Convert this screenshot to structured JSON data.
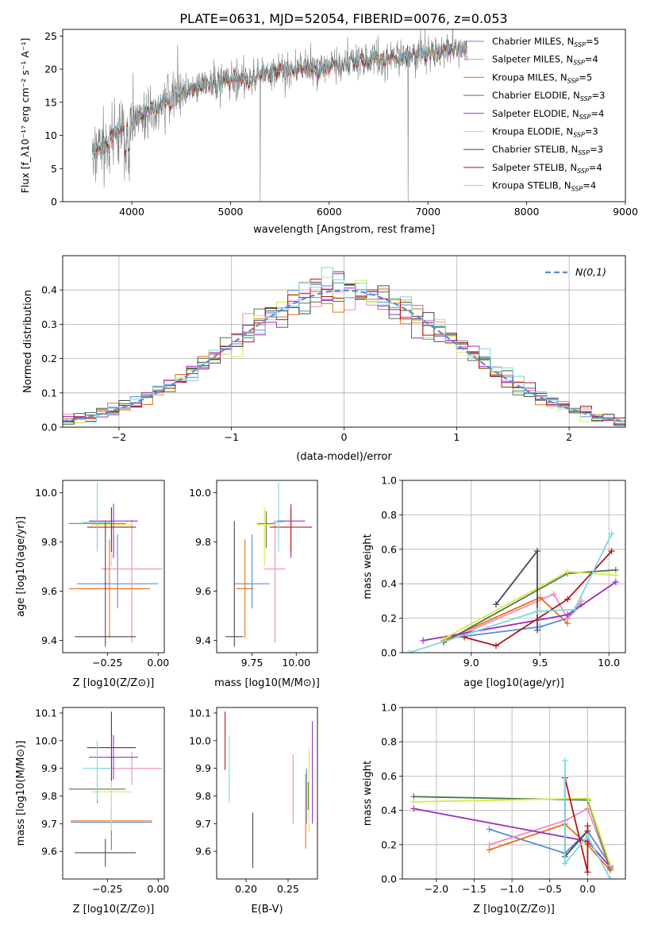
{
  "figure_title": "PLATE=0631, MJD=52054, FIBERID=0076, z=0.053",
  "colors": {
    "Chabrier MILES": "#5b8bd6",
    "Salpeter MILES": "#f08cb8",
    "Kroupa MILES": "#e8701a",
    "Chabrier ELODIE": "#4a7a4a",
    "Salpeter ELODIE": "#9b2ec0",
    "Kroupa ELODIE": "#d8e84a",
    "Chabrier STELIB": "#4a4a4a",
    "Salpeter STELIB": "#b01818",
    "Kroupa STELIB": "#7dd6e0",
    "data": "#808080",
    "gaussian": "#5b8bd6",
    "grid": "#b0b0b0"
  },
  "chart_data": [
    {
      "type": "line",
      "panel": "spectrum",
      "xlabel": "wavelength [Angstrom, rest frame]",
      "ylabel": "Flux [f_λ10⁻¹⁷ erg cm⁻² s⁻¹ A⁻¹]",
      "xlim": [
        3300,
        9000
      ],
      "ylim": [
        0,
        26
      ],
      "xticks": [
        4000,
        5000,
        6000,
        7000,
        8000,
        9000
      ],
      "yticks": [
        0,
        5,
        10,
        15,
        20,
        25
      ],
      "grid": false,
      "legend_position": "upper-right",
      "data_range": [
        3600,
        7400
      ],
      "continuum": {
        "x": [
          3600,
          3800,
          4000,
          4200,
          4500,
          5000,
          5500,
          6000,
          6500,
          7000,
          7400
        ],
        "y": [
          7,
          10,
          12,
          14,
          16.5,
          18.5,
          19.5,
          20.5,
          21.5,
          22.5,
          23
        ]
      },
      "series": [
        {
          "name": "Chabrier MILES, N_SSP=5",
          "label_main": "Chabrier MILES, N",
          "label_sub": "SSP",
          "label_tail": "=5"
        },
        {
          "name": "Salpeter MILES, N_SSP=4",
          "label_main": "Salpeter MILES, N",
          "label_sub": "SSP",
          "label_tail": "=4"
        },
        {
          "name": "Kroupa MILES, N_SSP=5",
          "label_main": "Kroupa MILES, N",
          "label_sub": "SSP",
          "label_tail": "=5"
        },
        {
          "name": "Chabrier ELODIE, N_SSP=3",
          "label_main": "Chabrier ELODIE, N",
          "label_sub": "SSP",
          "label_tail": "=3"
        },
        {
          "name": "Salpeter ELODIE, N_SSP=4",
          "label_main": "Salpeter ELODIE, N",
          "label_sub": "SSP",
          "label_tail": "=4"
        },
        {
          "name": "Kroupa ELODIE, N_SSP=3",
          "label_main": "Kroupa ELODIE, N",
          "label_sub": "SSP",
          "label_tail": "=3"
        },
        {
          "name": "Chabrier STELIB, N_SSP=3",
          "label_main": "Chabrier STELIB, N",
          "label_sub": "SSP",
          "label_tail": "=3"
        },
        {
          "name": "Salpeter STELIB, N_SSP=4",
          "label_main": "Salpeter STELIB, N",
          "label_sub": "SSP",
          "label_tail": "=4"
        },
        {
          "name": "Kroupa STELIB, N_SSP=4",
          "label_main": "Kroupa STELIB, N",
          "label_sub": "SSP",
          "label_tail": "=4"
        }
      ]
    },
    {
      "type": "histogram",
      "panel": "residuals",
      "xlabel": "(data-model)/error",
      "ylabel": "Normed distribution",
      "xlim": [
        -2.5,
        2.5
      ],
      "ylim": [
        0,
        0.5
      ],
      "xticks": [
        -2,
        -1,
        0,
        1,
        2
      ],
      "yticks": [
        0.0,
        0.1,
        0.2,
        0.3,
        0.4
      ],
      "grid": true,
      "bin_width": 0.1,
      "reference_curve": {
        "name": "N(0,1)",
        "mean": 0,
        "sigma": 1
      },
      "legend_position": "upper-right"
    },
    {
      "type": "scatter",
      "panel": "Z-age",
      "xlabel": "Z [log10(Z/Z⊙)]",
      "ylabel": "age  [log10(age/yr)]",
      "xlim": [
        -0.47,
        0.03
      ],
      "ylim": [
        9.35,
        10.05
      ],
      "xticks": [
        -0.25,
        0.0
      ],
      "yticks": [
        9.4,
        9.6,
        9.8,
        10.0
      ],
      "grid": false,
      "points": [
        {
          "series": "Chabrier MILES",
          "x": -0.2,
          "y": 9.63,
          "xerr": 0.2,
          "yerr": [
            0.1,
            0.2
          ]
        },
        {
          "series": "Salpeter MILES",
          "x": -0.13,
          "y": 9.69,
          "xerr": 0.15,
          "yerr": [
            0.3,
            0.2
          ]
        },
        {
          "series": "Kroupa MILES",
          "x": -0.24,
          "y": 9.61,
          "xerr": 0.2,
          "yerr": [
            0.2,
            0.2
          ]
        },
        {
          "series": "Chabrier ELODIE",
          "x": -0.3,
          "y": 9.875,
          "xerr": 0.14,
          "yerr": [
            0.1,
            0.05
          ]
        },
        {
          "series": "Salpeter ELODIE",
          "x": -0.22,
          "y": 9.885,
          "xerr": 0.12,
          "yerr": [
            0.15,
            0.07
          ]
        },
        {
          "series": "Kroupa ELODIE",
          "x": -0.23,
          "y": 9.87,
          "xerr": 0.1,
          "yerr": [
            0.17,
            0.07
          ]
        },
        {
          "series": "Chabrier STELIB",
          "x": -0.26,
          "y": 9.415,
          "xerr": 0.15,
          "yerr": [
            0.04,
            0.47
          ]
        },
        {
          "series": "Salpeter STELIB",
          "x": -0.23,
          "y": 9.86,
          "xerr": 0.12,
          "yerr": [
            0.1,
            0.08
          ]
        },
        {
          "series": "Kroupa STELIB",
          "x": -0.3,
          "y": 9.88,
          "xerr": 0.07,
          "yerr": [
            0.12,
            0.16
          ]
        }
      ]
    },
    {
      "type": "scatter",
      "panel": "mass-age",
      "xlabel": "mass [log10(M/M⊙)]",
      "ylabel": "",
      "xlim": [
        9.55,
        10.12
      ],
      "ylim": [
        9.35,
        10.05
      ],
      "xticks": [
        9.75,
        10.0
      ],
      "yticks": [
        9.4,
        9.6,
        9.8,
        10.0
      ],
      "grid": false,
      "points": [
        {
          "series": "Chabrier MILES",
          "x": 9.75,
          "y": 9.63,
          "xerr": 0.1,
          "yerr": [
            0.1,
            0.2
          ]
        },
        {
          "series": "Salpeter MILES",
          "x": 9.88,
          "y": 9.69,
          "xerr": 0.06,
          "yerr": [
            0.3,
            0.2
          ]
        },
        {
          "series": "Kroupa MILES",
          "x": 9.71,
          "y": 9.61,
          "xerr": 0.05,
          "yerr": [
            0.2,
            0.2
          ]
        },
        {
          "series": "Chabrier ELODIE",
          "x": 9.83,
          "y": 9.875,
          "xerr": 0.05,
          "yerr": [
            0.1,
            0.05
          ]
        },
        {
          "series": "Salpeter ELODIE",
          "x": 9.97,
          "y": 9.885,
          "xerr": 0.08,
          "yerr": [
            0.15,
            0.07
          ]
        },
        {
          "series": "Kroupa ELODIE",
          "x": 9.82,
          "y": 9.87,
          "xerr": 0.05,
          "yerr": [
            0.17,
            0.07
          ]
        },
        {
          "series": "Chabrier STELIB",
          "x": 9.65,
          "y": 9.415,
          "xerr": 0.05,
          "yerr": [
            0.04,
            0.47
          ]
        },
        {
          "series": "Salpeter STELIB",
          "x": 9.97,
          "y": 9.86,
          "xerr": 0.12,
          "yerr": [
            0.1,
            0.08
          ]
        },
        {
          "series": "Kroupa STELIB",
          "x": 9.9,
          "y": 9.88,
          "xerr": 0.03,
          "yerr": [
            0.12,
            0.16
          ]
        }
      ]
    },
    {
      "type": "line",
      "panel": "age-massweight",
      "xlabel": "age  [log10(age/yr)]",
      "ylabel": "mass weight",
      "xlim": [
        8.5,
        10.12
      ],
      "ylim": [
        0,
        1
      ],
      "xticks": [
        9.0,
        9.5,
        10.0
      ],
      "yticks": [
        0.0,
        0.2,
        0.4,
        0.6,
        0.8,
        1.0
      ],
      "grid": true,
      "series": [
        {
          "series": "Chabrier MILES",
          "x": [
            8.8,
            9.5,
            9.7,
            9.8
          ],
          "y": [
            0.08,
            0.15,
            0.2,
            0.28
          ]
        },
        {
          "series": "Salpeter MILES",
          "x": [
            8.8,
            9.6,
            9.7,
            9.8
          ],
          "y": [
            0.06,
            0.34,
            0.2,
            0.3
          ]
        },
        {
          "series": "Kroupa MILES",
          "x": [
            8.8,
            9.5,
            9.7
          ],
          "y": [
            0.07,
            0.32,
            0.17
          ]
        },
        {
          "series": "Chabrier ELODIE",
          "x": [
            8.8,
            9.7,
            10.05
          ],
          "y": [
            0.06,
            0.46,
            0.48
          ]
        },
        {
          "series": "Salpeter ELODIE",
          "x": [
            8.65,
            9.7,
            10.05
          ],
          "y": [
            0.07,
            0.22,
            0.41
          ]
        },
        {
          "series": "Kroupa ELODIE",
          "x": [
            8.8,
            9.7,
            10.05
          ],
          "y": [
            0.08,
            0.47,
            0.45
          ]
        },
        {
          "series": "Chabrier STELIB",
          "x": [
            9.18,
            9.48,
            9.48
          ],
          "y": [
            0.28,
            0.59,
            0.13
          ]
        },
        {
          "series": "Salpeter STELIB",
          "x": [
            8.95,
            9.18,
            9.7,
            10.02
          ],
          "y": [
            0.09,
            0.04,
            0.31,
            0.59
          ]
        },
        {
          "series": "Kroupa STELIB",
          "x": [
            8.55,
            9.48,
            9.75,
            10.02
          ],
          "y": [
            0.0,
            0.24,
            0.25,
            0.69
          ]
        }
      ]
    },
    {
      "type": "scatter",
      "panel": "Z-mass",
      "xlabel": "Z [log10(Z/Z⊙)]",
      "ylabel": "mass [log10(M/M⊙)]",
      "xlim": [
        -0.47,
        0.03
      ],
      "ylim": [
        9.5,
        10.12
      ],
      "xticks": [
        -0.25,
        0.0
      ],
      "yticks": [
        9.6,
        9.7,
        9.8,
        9.9,
        10.0,
        10.1
      ],
      "grid": false,
      "points": [
        {
          "series": "Chabrier MILES",
          "x": -0.23,
          "y": 9.705,
          "xerr": 0.2,
          "yerr": [
            0.1,
            0.1
          ]
        },
        {
          "series": "Salpeter MILES",
          "x": -0.13,
          "y": 9.9,
          "xerr": 0.15,
          "yerr": [
            0.06,
            0.06
          ]
        },
        {
          "series": "Kroupa MILES",
          "x": -0.23,
          "y": 9.71,
          "xerr": 0.2,
          "yerr": [
            0.1,
            0.05
          ]
        },
        {
          "series": "Chabrier ELODIE",
          "x": -0.3,
          "y": 9.825,
          "xerr": 0.14,
          "yerr": [
            0.05,
            0.05
          ]
        },
        {
          "series": "Salpeter ELODIE",
          "x": -0.22,
          "y": 9.94,
          "xerr": 0.12,
          "yerr": [
            0.08,
            0.08
          ]
        },
        {
          "series": "Kroupa ELODIE",
          "x": -0.23,
          "y": 9.815,
          "xerr": 0.1,
          "yerr": [
            0.14,
            0.05
          ]
        },
        {
          "series": "Chabrier STELIB",
          "x": -0.26,
          "y": 9.595,
          "xerr": 0.15,
          "yerr": [
            0.05,
            0.05
          ]
        },
        {
          "series": "Salpeter STELIB",
          "x": -0.23,
          "y": 9.975,
          "xerr": 0.12,
          "yerr": [
            0.12,
            0.13
          ]
        },
        {
          "series": "Kroupa STELIB",
          "x": -0.3,
          "y": 9.9,
          "xerr": 0.07,
          "yerr": [
            0.12,
            0.1
          ]
        }
      ]
    },
    {
      "type": "scatter",
      "panel": "EBV-mass",
      "xlabel": "E(B-V)",
      "ylabel": "",
      "xlim": [
        0.165,
        0.285
      ],
      "ylim": [
        9.5,
        10.12
      ],
      "xticks": [
        0.2,
        0.25
      ],
      "yticks": [
        9.6,
        9.7,
        9.8,
        9.9,
        10.0,
        10.1
      ],
      "grid": false,
      "points": [
        {
          "series": "Chabrier MILES",
          "x": 0.272,
          "y": 9.8,
          "yerr": [
            0.1,
            0.1
          ]
        },
        {
          "series": "Salpeter MILES",
          "x": 0.256,
          "y": 9.82,
          "yerr": [
            0.12,
            0.13
          ]
        },
        {
          "series": "Kroupa MILES",
          "x": 0.271,
          "y": 9.75,
          "yerr": [
            0.14,
            0.13
          ]
        },
        {
          "series": "Chabrier ELODIE",
          "x": 0.274,
          "y": 9.8,
          "yerr": [
            0.05,
            0.05
          ]
        },
        {
          "series": "Salpeter ELODIE",
          "x": 0.279,
          "y": 9.88,
          "yerr": [
            0.18,
            0.19
          ]
        },
        {
          "series": "Kroupa ELODIE",
          "x": 0.275,
          "y": 9.82,
          "yerr": [
            0.15,
            0.15
          ]
        },
        {
          "series": "Chabrier STELIB",
          "x": 0.208,
          "y": 9.64,
          "yerr": [
            0.1,
            0.1
          ]
        },
        {
          "series": "Salpeter STELIB",
          "x": 0.175,
          "y": 9.995,
          "yerr": [
            0.1,
            0.11
          ]
        },
        {
          "series": "Kroupa STELIB",
          "x": 0.18,
          "y": 9.895,
          "yerr": [
            0.12,
            0.12
          ]
        }
      ]
    },
    {
      "type": "line",
      "panel": "Z-massweight",
      "xlabel": "Z [log10(Z/Z⊙)]",
      "ylabel": "mass weight",
      "xlim": [
        -2.45,
        0.5
      ],
      "ylim": [
        0,
        1
      ],
      "xticks": [
        -2.0,
        -1.5,
        -1.0,
        -0.5,
        0.0
      ],
      "yticks": [
        0.0,
        0.2,
        0.4,
        0.6,
        0.8,
        1.0
      ],
      "grid": true,
      "series": [
        {
          "series": "Chabrier MILES",
          "x": [
            -1.3,
            -0.3,
            0.0,
            0.3
          ],
          "y": [
            0.29,
            0.15,
            0.28,
            0.08
          ]
        },
        {
          "series": "Salpeter MILES",
          "x": [
            -1.3,
            -0.3,
            0.0,
            0.3
          ],
          "y": [
            0.2,
            0.34,
            0.41,
            0.06
          ]
        },
        {
          "series": "Kroupa MILES",
          "x": [
            -1.3,
            -0.3,
            0.0,
            0.3
          ],
          "y": [
            0.17,
            0.32,
            0.2,
            0.05
          ]
        },
        {
          "series": "Chabrier ELODIE",
          "x": [
            -2.3,
            0.0,
            0.3
          ],
          "y": [
            0.48,
            0.46,
            0.06
          ]
        },
        {
          "series": "Salpeter ELODIE",
          "x": [
            -2.3,
            0.0,
            0.3
          ],
          "y": [
            0.41,
            0.22,
            0.07
          ]
        },
        {
          "series": "Kroupa ELODIE",
          "x": [
            -2.3,
            0.0,
            0.3
          ],
          "y": [
            0.45,
            0.47,
            0.08
          ]
        },
        {
          "series": "Chabrier STELIB",
          "x": [
            -0.3,
            -0.3,
            0.0
          ],
          "y": [
            0.59,
            0.13,
            0.28
          ]
        },
        {
          "series": "Salpeter STELIB",
          "x": [
            -0.3,
            0.0,
            0.0
          ],
          "y": [
            0.59,
            0.04,
            0.31
          ]
        },
        {
          "series": "Kroupa STELIB",
          "x": [
            -0.3,
            -0.3,
            0.0,
            0.3
          ],
          "y": [
            0.69,
            0.09,
            0.25,
            0.0
          ]
        }
      ]
    }
  ]
}
